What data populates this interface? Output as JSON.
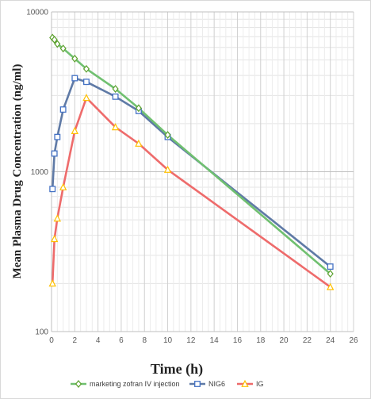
{
  "chart_data": {
    "type": "line",
    "xlabel": "Time (h)",
    "ylabel": "Mean Plasma Drug Concentration (ng/ml)",
    "x_scale": "linear",
    "y_scale": "log",
    "xlim": [
      0,
      26
    ],
    "ylim": [
      100,
      10000
    ],
    "x_ticks": [
      "0",
      "2",
      "4",
      "6",
      "8",
      "10",
      "12",
      "14",
      "16",
      "18",
      "20",
      "22",
      "24",
      "26"
    ],
    "y_ticks": [
      "100",
      "1000",
      "10000"
    ],
    "grid": true,
    "legend_position": "bottom",
    "series": [
      {
        "name": "marketing zofran IV injection",
        "color": "#70c070",
        "marker": "diamond",
        "marker_color": "#5aa02c",
        "x": [
          0.083,
          0.25,
          0.5,
          1,
          2,
          3,
          5.5,
          7.5,
          10,
          24
        ],
        "y": [
          6900,
          6700,
          6300,
          5900,
          5100,
          4400,
          3300,
          2500,
          1700,
          230
        ]
      },
      {
        "name": "NIG6",
        "color": "#5f7aa6",
        "marker": "square",
        "marker_color": "#4472c4",
        "x": [
          0.083,
          0.25,
          0.5,
          1,
          2,
          3,
          5.5,
          7.5,
          10,
          24
        ],
        "y": [
          780,
          1300,
          1650,
          2450,
          3850,
          3650,
          2950,
          2400,
          1650,
          255
        ]
      },
      {
        "name": "IG",
        "color": "#ee6b6b",
        "marker": "triangle",
        "marker_color": "#ffc000",
        "x": [
          0.083,
          0.25,
          0.5,
          1,
          2,
          3,
          5.5,
          7.5,
          10,
          24
        ],
        "y": [
          200,
          380,
          510,
          800,
          1800,
          2900,
          1900,
          1500,
          1030,
          190
        ]
      }
    ]
  }
}
